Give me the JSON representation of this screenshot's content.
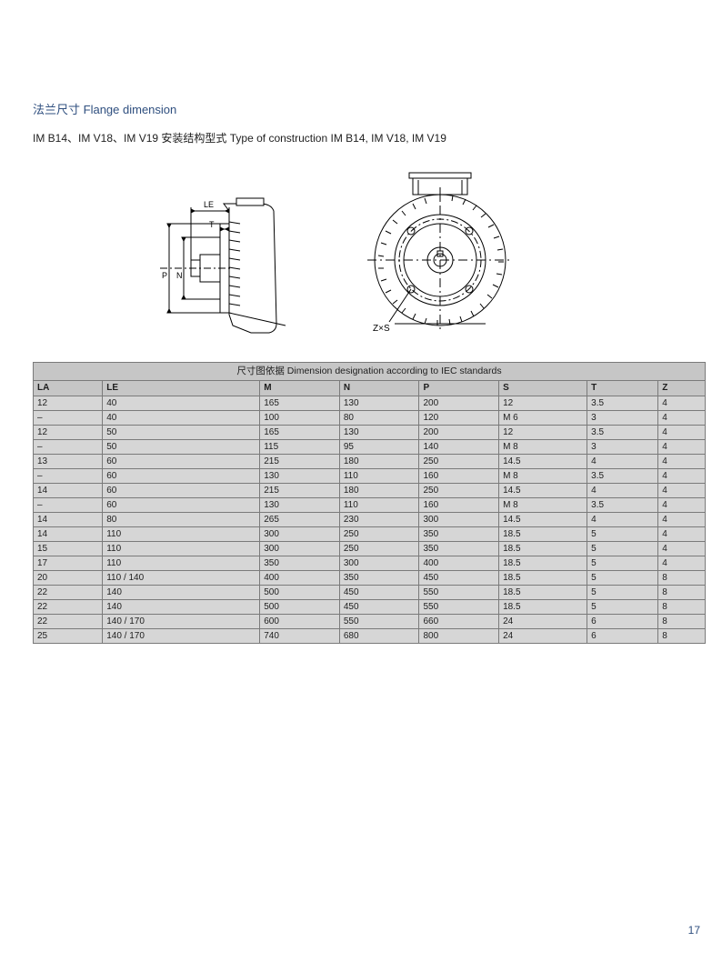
{
  "header": {
    "title_cn": "法兰尺寸",
    "title_en": "Flange dimension",
    "subtitle_prefix": "IM B14、IM V18、IM V19",
    "subtitle_cn": "安装结构型式",
    "subtitle_en": "Type of construction IM B14, IM V18, IM V19"
  },
  "diagrams": {
    "left": {
      "labels": {
        "LE": "LE",
        "T": "T",
        "N": "N",
        "P": "P"
      },
      "stroke": "#000000",
      "background": "#ffffff"
    },
    "right": {
      "label": "Z×S",
      "stroke": "#000000",
      "background": "#ffffff"
    }
  },
  "table": {
    "caption_cn": "尺寸图依据",
    "caption_en": "Dimension designation according to IEC standards",
    "columns": [
      "LA",
      "LE",
      "M",
      "N",
      "P",
      "S",
      "T",
      "Z"
    ],
    "col_widths_pct": [
      12.5,
      12.5,
      12.5,
      12.5,
      12.5,
      12.5,
      12.5,
      12.5
    ],
    "header_bg": "#c6c6c6",
    "body_bg": "#d6d6d6",
    "border_color": "#7a7a7a",
    "font_size_pt": 7.5,
    "rows": [
      [
        "12",
        "40",
        "165",
        "130",
        "200",
        "12",
        "3.5",
        "4"
      ],
      [
        "–",
        "40",
        "100",
        "80",
        "120",
        "M 6",
        "3",
        "4"
      ],
      [
        "12",
        "50",
        "165",
        "130",
        "200",
        "12",
        "3.5",
        "4"
      ],
      [
        "–",
        "50",
        "115",
        "95",
        "140",
        "M 8",
        "3",
        "4"
      ],
      [
        "13",
        "60",
        "215",
        "180",
        "250",
        "14.5",
        "4",
        "4"
      ],
      [
        "–",
        "60",
        "130",
        "110",
        "160",
        "M 8",
        "3.5",
        "4"
      ],
      [
        "14",
        "60",
        "215",
        "180",
        "250",
        "14.5",
        "4",
        "4"
      ],
      [
        "–",
        "60",
        "130",
        "110",
        "160",
        "M 8",
        "3.5",
        "4"
      ],
      [
        "14",
        "80",
        "265",
        "230",
        "300",
        "14.5",
        "4",
        "4"
      ],
      [
        "14",
        "110",
        "300",
        "250",
        "350",
        "18.5",
        "5",
        "4"
      ],
      [
        "15",
        "110",
        "300",
        "250",
        "350",
        "18.5",
        "5",
        "4"
      ],
      [
        "17",
        "110",
        "350",
        "300",
        "400",
        "18.5",
        "5",
        "4"
      ],
      [
        "20",
        "110 / 140",
        "400",
        "350",
        "450",
        "18.5",
        "5",
        "8"
      ],
      [
        "22",
        "140",
        "500",
        "450",
        "550",
        "18.5",
        "5",
        "8"
      ],
      [
        "22",
        "140",
        "500",
        "450",
        "550",
        "18.5",
        "5",
        "8"
      ],
      [
        "22",
        "140 / 170",
        "600",
        "550",
        "660",
        "24",
        "6",
        "8"
      ],
      [
        "25",
        "140 / 170",
        "740",
        "680",
        "800",
        "24",
        "6",
        "8"
      ]
    ]
  },
  "page_number": "17",
  "colors": {
    "title_color": "#2f4f7f",
    "text_color": "#1e1e1e",
    "page_bg": "#ffffff"
  }
}
